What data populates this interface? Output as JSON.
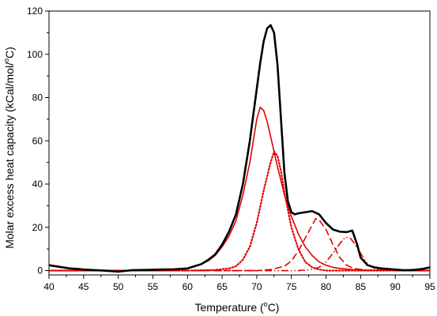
{
  "chart_data": {
    "type": "line",
    "title": "",
    "xlabel": {
      "pre": "Temperature (",
      "sup": "o",
      "post": "C)"
    },
    "ylabel": {
      "pre": "Molar excess heat capacity (kCal/mol/",
      "sup": "o",
      "post": "C)"
    },
    "xlim": [
      40,
      95
    ],
    "ylim": [
      -2,
      120
    ],
    "xticks": [
      40,
      45,
      50,
      55,
      60,
      65,
      70,
      75,
      80,
      85,
      90,
      95
    ],
    "yticks": [
      0,
      20,
      40,
      60,
      80,
      100,
      120
    ],
    "grid": false,
    "legend": "none",
    "series": [
      {
        "color": "#000000",
        "style": "solid",
        "points": [
          [
            40,
            2.5
          ],
          [
            41,
            2
          ],
          [
            42,
            1.5
          ],
          [
            43,
            1
          ],
          [
            44,
            0.8
          ],
          [
            45,
            0.5
          ],
          [
            46,
            0.3
          ],
          [
            48,
            0
          ],
          [
            50,
            -0.5
          ],
          [
            52,
            0.2
          ],
          [
            54,
            0.3
          ],
          [
            56,
            0.5
          ],
          [
            58,
            0.6
          ],
          [
            60,
            1
          ],
          [
            61,
            2
          ],
          [
            62,
            3
          ],
          [
            63,
            5
          ],
          [
            64,
            7.5
          ],
          [
            65,
            12
          ],
          [
            66,
            18
          ],
          [
            67,
            26
          ],
          [
            68,
            40
          ],
          [
            69,
            60
          ],
          [
            70,
            84
          ],
          [
            70.5,
            96
          ],
          [
            71,
            106
          ],
          [
            71.5,
            112
          ],
          [
            72,
            113.5
          ],
          [
            72.5,
            110
          ],
          [
            73,
            95
          ],
          [
            73.5,
            70
          ],
          [
            74,
            45
          ],
          [
            74.5,
            32
          ],
          [
            75,
            27
          ],
          [
            75.5,
            26
          ],
          [
            76,
            26.5
          ],
          [
            77,
            27
          ],
          [
            78,
            27.5
          ],
          [
            79,
            26
          ],
          [
            80,
            22
          ],
          [
            81,
            19
          ],
          [
            82,
            18
          ],
          [
            83,
            17.8
          ],
          [
            83.8,
            18.5
          ],
          [
            84.5,
            12
          ],
          [
            85,
            6
          ],
          [
            86,
            2.5
          ],
          [
            87,
            1.5
          ],
          [
            88,
            1
          ],
          [
            90,
            0.5
          ],
          [
            91,
            0.2
          ],
          [
            92,
            0.2
          ],
          [
            93,
            0.4
          ],
          [
            94,
            0.8
          ],
          [
            95,
            1.5
          ]
        ]
      },
      {
        "color": "#e00000",
        "style": "solid",
        "points": [
          [
            40,
            0
          ],
          [
            50,
            0
          ],
          [
            55,
            0
          ],
          [
            58,
            0.5
          ],
          [
            60,
            1
          ],
          [
            62,
            3
          ],
          [
            63,
            4.5
          ],
          [
            64,
            7
          ],
          [
            65,
            11
          ],
          [
            66,
            16
          ],
          [
            67,
            23
          ],
          [
            68,
            35
          ],
          [
            69,
            50
          ],
          [
            70,
            70
          ],
          [
            70.5,
            75.5
          ],
          [
            71,
            74
          ],
          [
            71.5,
            69
          ],
          [
            72,
            62
          ],
          [
            73,
            48
          ],
          [
            74,
            35
          ],
          [
            75,
            25
          ],
          [
            76,
            17
          ],
          [
            77,
            11
          ],
          [
            78,
            7
          ],
          [
            79,
            4
          ],
          [
            80,
            2.5
          ],
          [
            81,
            1.5
          ],
          [
            82,
            1
          ],
          [
            84,
            0.4
          ],
          [
            86,
            0.2
          ],
          [
            95,
            0
          ]
        ]
      },
      {
        "color": "#e00000",
        "style": "dotted",
        "points": [
          [
            40,
            0
          ],
          [
            60,
            0
          ],
          [
            64,
            0.3
          ],
          [
            66,
            1
          ],
          [
            67,
            2
          ],
          [
            68,
            5
          ],
          [
            69,
            11
          ],
          [
            70,
            22
          ],
          [
            71,
            37
          ],
          [
            72,
            50
          ],
          [
            72.5,
            55
          ],
          [
            73,
            53
          ],
          [
            73.5,
            46
          ],
          [
            74,
            36
          ],
          [
            75,
            20
          ],
          [
            76,
            10
          ],
          [
            77,
            4
          ],
          [
            78,
            1.5
          ],
          [
            79,
            0.5
          ],
          [
            80,
            0
          ],
          [
            95,
            0
          ]
        ]
      },
      {
        "color": "#e00000",
        "style": "dashed",
        "points": [
          [
            40,
            0
          ],
          [
            70,
            0
          ],
          [
            72,
            0.5
          ],
          [
            74,
            2
          ],
          [
            75,
            4.5
          ],
          [
            76,
            9
          ],
          [
            77,
            15
          ],
          [
            78,
            21
          ],
          [
            78.5,
            24
          ],
          [
            79,
            23.5
          ],
          [
            80,
            19
          ],
          [
            81,
            12
          ],
          [
            82,
            6
          ],
          [
            83,
            2.5
          ],
          [
            84,
            1
          ],
          [
            86,
            0.2
          ],
          [
            95,
            0
          ]
        ]
      },
      {
        "color": "#e00000",
        "style": "dashdotdot",
        "points": [
          [
            40,
            0
          ],
          [
            76,
            0
          ],
          [
            78,
            0.5
          ],
          [
            79,
            1.5
          ],
          [
            80,
            4
          ],
          [
            81,
            8
          ],
          [
            82,
            12.5
          ],
          [
            82.8,
            15.5
          ],
          [
            83.5,
            15
          ],
          [
            84,
            13
          ],
          [
            85,
            8
          ],
          [
            86,
            3
          ],
          [
            87,
            1
          ],
          [
            88,
            0.3
          ],
          [
            90,
            0
          ],
          [
            95,
            0
          ]
        ]
      }
    ]
  }
}
